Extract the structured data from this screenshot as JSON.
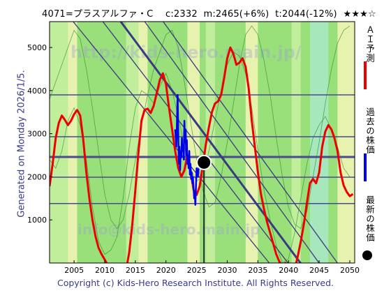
{
  "header": {
    "title": "4071=プラスアルファ・C　 c:2332  m:2465(+6%)  t:2044(-12%)  ★★★☆"
  },
  "side_label": "Generated on Monday 2026/1/5.",
  "legend": {
    "ai_forecast": "ＡＩ予測",
    "past_price": "過去の株価",
    "latest_price": "最新の株価",
    "colors": {
      "ai_forecast": "#ee0000",
      "past_price": "#0000ee",
      "latest_price": "#000000"
    }
  },
  "footer": "Copyright (c) Kids-Hero Research Institute. All Rights Reserved.",
  "watermark": {
    "top": "http://kids-hero.main.jp/",
    "bottom": "info@kids-hero.main.jp"
  },
  "colors": {
    "plot_bg": "#99e07a",
    "band_light": "#c8f0a0",
    "band_yellow": "#f5f5b8",
    "band_teal": "#a8e8c8",
    "band_green": "#66cc66",
    "level_line": "#4a4a8e",
    "trend_line": "#3a3a80",
    "thin_green": "#2a8a2a"
  },
  "chart_data": {
    "type": "line",
    "x_label": "",
    "y_label": "",
    "xlim": [
      2001,
      2050.8
    ],
    "ylim": [
      0,
      5600
    ],
    "x_ticks": [
      2005,
      2010,
      2015,
      2020,
      2025,
      2030,
      2035,
      2040,
      2045,
      2050
    ],
    "y_ticks": [
      1000,
      2000,
      3000,
      4000,
      5000
    ],
    "latest": {
      "year": 2026.2,
      "value": 2332
    },
    "horizontal_levels": [
      1380,
      1990,
      2460,
      2930,
      3900
    ],
    "thick_levels": [
      2460
    ],
    "trend_lines": [
      {
        "from": [
          2002,
          6100
        ],
        "to": [
          2038,
          -200
        ],
        "thick": false
      },
      {
        "from": [
          2007,
          6100
        ],
        "to": [
          2041,
          -200
        ],
        "thick": false
      },
      {
        "from": [
          2010,
          6100
        ],
        "to": [
          2043,
          -200
        ],
        "thick": true
      },
      {
        "from": [
          2014,
          6100
        ],
        "to": [
          2046,
          -200
        ],
        "thick": false
      },
      {
        "from": [
          2017,
          6100
        ],
        "to": [
          2049,
          -200
        ],
        "thick": false
      }
    ],
    "bands": [
      {
        "type": "light",
        "x0": 2001,
        "x1": 2004
      },
      {
        "type": "yellow",
        "x0": 2004,
        "x1": 2005.5
      },
      {
        "type": "light",
        "x0": 2013.5,
        "x1": 2015.5
      },
      {
        "type": "yellow",
        "x0": 2015.5,
        "x1": 2017
      },
      {
        "type": "yellow",
        "x0": 2023.5,
        "x1": 2025.5
      },
      {
        "type": "light",
        "x0": 2026.5,
        "x1": 2028
      },
      {
        "type": "yellow",
        "x0": 2033,
        "x1": 2035
      },
      {
        "type": "light",
        "x0": 2040.5,
        "x1": 2042
      },
      {
        "type": "teal",
        "x0": 2043.5,
        "x1": 2046.5
      },
      {
        "type": "yellow",
        "x0": 2048,
        "x1": 2050.8
      }
    ],
    "series": [
      {
        "name": "ＡＩ予測",
        "color": "#ee0000",
        "x": [
          2001,
          2001.5,
          2002,
          2002.5,
          2003,
          2003.5,
          2004,
          2004.5,
          2005,
          2005.5,
          2006,
          2006.5,
          2007,
          2007.5,
          2008,
          2008.5,
          2009,
          2009.5,
          2010,
          2010.5,
          2011,
          2011.5,
          2012,
          2012.5,
          2013,
          2013.5,
          2014,
          2014.5,
          2015,
          2015.5,
          2016,
          2016.5,
          2017,
          2017.5,
          2018,
          2018.5,
          2019,
          2019.5,
          2020,
          2020.5,
          2021,
          2021.5,
          2022,
          2022.5,
          2023,
          2023.5,
          2024,
          2024.5,
          2025,
          2025.5,
          2026,
          2026.5,
          2027,
          2027.5,
          2028,
          2028.5,
          2029,
          2029.5,
          2030,
          2030.5,
          2031,
          2031.5,
          2032,
          2032.5,
          2033,
          2033.5,
          2034,
          2034.5,
          2035,
          2035.5,
          2036,
          2036.5,
          2037,
          2037.5,
          2038,
          2038.5,
          2039,
          2039.5,
          2040,
          2040.5,
          2041,
          2041.5,
          2042,
          2042.5,
          2043,
          2043.5,
          2044,
          2044.5,
          2045,
          2045.5,
          2046,
          2046.5,
          2047,
          2047.5,
          2048,
          2048.5,
          2049,
          2049.5,
          2050,
          2050.5
        ],
        "values": [
          1780,
          2300,
          2900,
          3250,
          3420,
          3320,
          3200,
          3300,
          3450,
          3550,
          3420,
          2850,
          2100,
          1500,
          1000,
          620,
          350,
          200,
          80,
          -50,
          -200,
          -300,
          -350,
          -300,
          -250,
          -150,
          250,
          900,
          1700,
          2550,
          3300,
          3550,
          3580,
          3480,
          3650,
          3950,
          4250,
          4400,
          4150,
          3600,
          3100,
          2600,
          2200,
          2000,
          2150,
          2500,
          2150,
          1700,
          1580,
          1780,
          2250,
          2750,
          3150,
          3500,
          3700,
          3750,
          3900,
          4300,
          4750,
          5000,
          4850,
          4600,
          4650,
          4750,
          4550,
          4050,
          3300,
          2700,
          2100,
          1600,
          1250,
          950,
          700,
          450,
          200,
          30,
          -50,
          0,
          -100,
          -300,
          -150,
          150,
          500,
          900,
          1400,
          1850,
          1950,
          1850,
          2100,
          2700,
          3050,
          3200,
          3100,
          2900,
          2600,
          2100,
          1800,
          1650,
          1550,
          1600
        ]
      },
      {
        "name": "過去の株価",
        "color": "#0000ee",
        "x": [
          2021.5,
          2021.7,
          2021.9,
          2022.0,
          2022.1,
          2022.2,
          2022.3,
          2022.4,
          2022.5,
          2022.6,
          2022.7,
          2022.8,
          2022.9,
          2023.0,
          2023.1,
          2023.2,
          2023.3,
          2023.4,
          2023.5,
          2023.6,
          2023.7,
          2023.8,
          2023.9,
          2024.0,
          2024.1,
          2024.2,
          2024.3,
          2024.4,
          2024.5,
          2024.6,
          2024.7,
          2024.8,
          2024.9,
          2025.0,
          2025.2,
          2025.4,
          2025.6,
          2025.8,
          2026.0,
          2026.2
        ],
        "values": [
          3100,
          2700,
          3900,
          3000,
          2300,
          2700,
          2150,
          2600,
          2450,
          2900,
          2600,
          2750,
          2400,
          3300,
          2800,
          3100,
          2500,
          2850,
          2300,
          2400,
          2200,
          2600,
          2050,
          2300,
          1950,
          2100,
          1850,
          2000,
          1750,
          1500,
          1600,
          1350,
          1800,
          2200,
          2000,
          2300,
          2200,
          2400,
          2300,
          2332
        ]
      }
    ],
    "thin_green_series": [
      {
        "x": [
          2001,
          2002,
          2003,
          2004,
          2005,
          2006,
          2007,
          2008,
          2009,
          2010,
          2011,
          2012,
          2013,
          2014,
          2015,
          2016,
          2017,
          2018,
          2019,
          2020,
          2021,
          2022,
          2023,
          2024,
          2025,
          2026,
          2027,
          2028,
          2029,
          2030,
          2031,
          2032,
          2033,
          2034,
          2035,
          2036,
          2037,
          2038,
          2039,
          2040,
          2041,
          2042,
          2043,
          2044,
          2045,
          2046,
          2047,
          2048,
          2049,
          2050
        ],
        "values": [
          2400,
          2200,
          2600,
          3300,
          3600,
          3200,
          2400,
          1300,
          500,
          200,
          300,
          600,
          1500,
          2700,
          3600,
          4000,
          3900,
          3700,
          4100,
          4400,
          4000,
          3400,
          2700,
          2200,
          1900,
          2000,
          2600,
          3300,
          4000,
          4600,
          4900,
          4800,
          4400,
          3600,
          2600,
          1700,
          1000,
          400,
          0,
          100,
          700,
          1500,
          2300,
          2900,
          3200,
          3400,
          3100,
          2700,
          2200,
          2000
        ]
      },
      {
        "x": [
          2001,
          2002,
          2003,
          2004,
          2005,
          2006,
          2007,
          2008,
          2009,
          2010,
          2011,
          2012,
          2013,
          2014,
          2015,
          2016,
          2017,
          2018,
          2019,
          2020,
          2021,
          2022,
          2023,
          2024,
          2025,
          2026,
          2027,
          2028,
          2029,
          2030,
          2031,
          2032,
          2033,
          2034,
          2035,
          2036,
          2037,
          2038,
          2039,
          2040,
          2041,
          2042,
          2043,
          2044,
          2045,
          2046,
          2047,
          2048,
          2049,
          2050
        ],
        "values": [
          3800,
          4200,
          4600,
          5000,
          5400,
          5200,
          4500,
          3600,
          2600,
          1600,
          1000,
          800,
          1000,
          1600,
          2400,
          3200,
          3900,
          4500,
          4900,
          5300,
          5400,
          5000,
          4200,
          3300,
          2400,
          1700,
          1300,
          1400,
          2000,
          2800,
          3700,
          4600,
          5300,
          5500,
          5300,
          4700,
          3900,
          2900,
          2000,
          1300,
          900,
          800,
          1200,
          2000,
          2800,
          3700,
          4500,
          5100,
          5400,
          5500
        ]
      }
    ]
  }
}
